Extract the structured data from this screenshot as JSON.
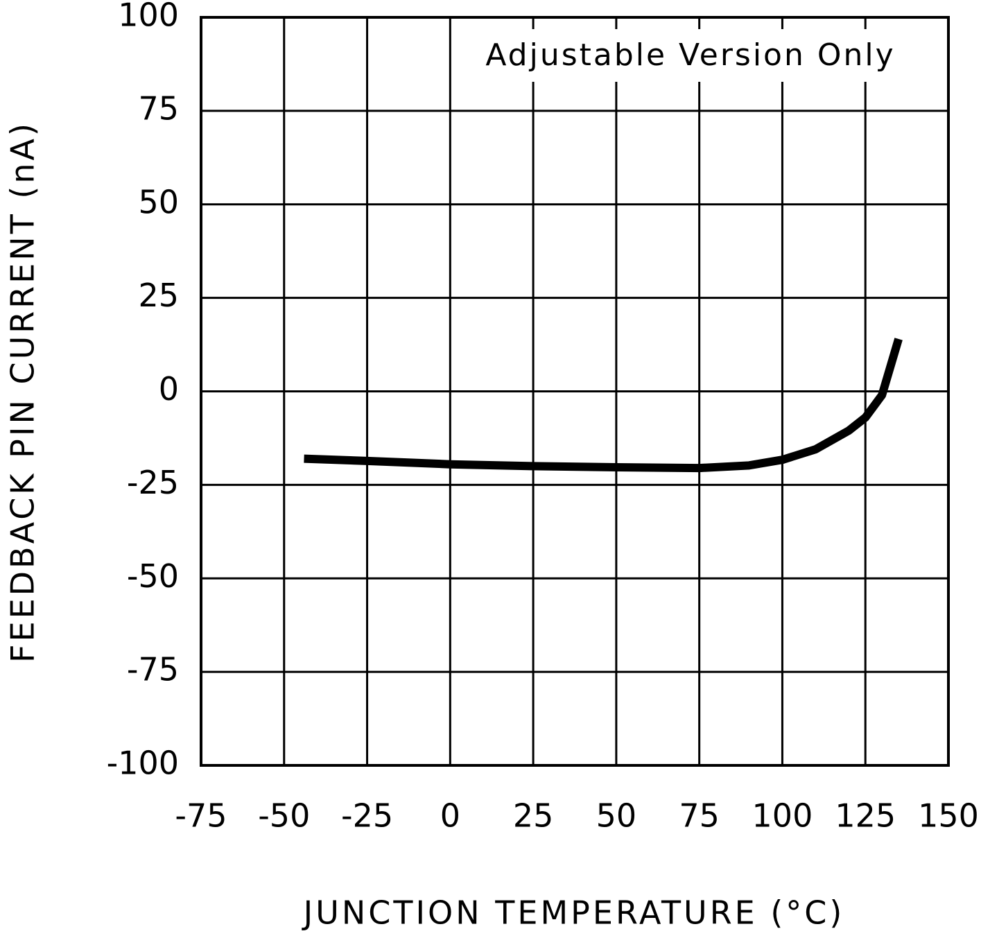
{
  "chart_data": {
    "type": "line",
    "annotation": "Adjustable Version Only",
    "x_label": "JUNCTION TEMPERATURE (°C)",
    "y_label": "FEEDBACK PIN CURRENT (nA)",
    "xlim": [
      -75,
      150
    ],
    "xticks": [
      -75,
      -50,
      -25,
      0,
      25,
      50,
      75,
      100,
      125,
      150
    ],
    "ylim": [
      -100,
      100
    ],
    "yticks": [
      -100,
      -75,
      -50,
      -25,
      0,
      25,
      50,
      75,
      100
    ],
    "grid": true,
    "series": [
      {
        "color": "#000000",
        "x": [
          -44,
          -25,
          0,
          25,
          50,
          75,
          90,
          100,
          110,
          120,
          125,
          130,
          133,
          135
        ],
        "values": [
          -18,
          -18.6,
          -19.5,
          -20,
          -20.3,
          -20.5,
          -19.8,
          -18.3,
          -15.5,
          -10.5,
          -7,
          -1,
          8,
          14
        ]
      }
    ]
  }
}
